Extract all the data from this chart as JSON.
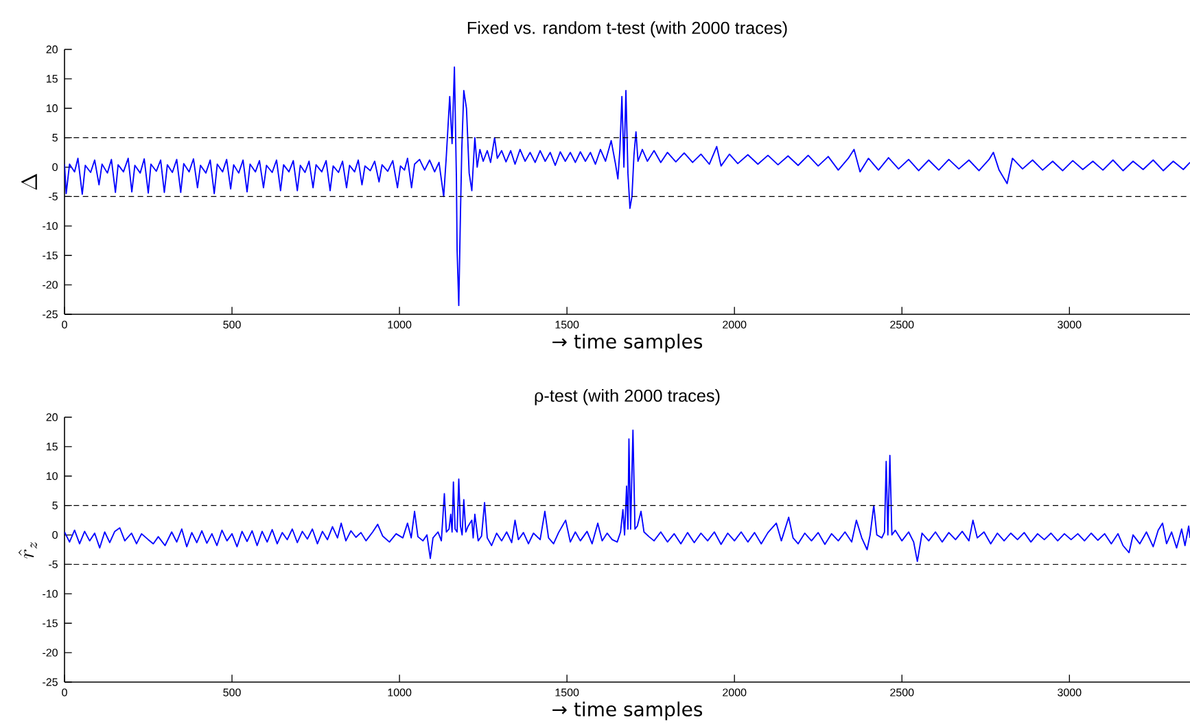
{
  "chart_data": [
    {
      "type": "line",
      "title": "Fixed vs. random t-test (with 2000 traces)",
      "xlabel": "→ time samples",
      "ylabel": "\\Delta",
      "xlim": [
        0,
        3360
      ],
      "ylim": [
        -25,
        20
      ],
      "xticks": [
        0,
        500,
        1000,
        1500,
        2000,
        2500,
        3000
      ],
      "yticks": [
        -25,
        -20,
        -15,
        -10,
        -5,
        0,
        5,
        10,
        15,
        20
      ],
      "ref_lines": [
        {
          "axis": "y",
          "value": 5,
          "color": "#000000",
          "line_style": "dashed"
        },
        {
          "axis": "y",
          "value": -5,
          "color": "#000000",
          "line_style": "dashed"
        }
      ],
      "x": [
        0,
        5,
        15,
        30,
        40,
        53,
        62,
        78,
        90,
        103,
        112,
        128,
        140,
        152,
        160,
        176,
        190,
        201,
        210,
        226,
        238,
        250,
        258,
        274,
        287,
        298,
        307,
        322,
        335,
        347,
        356,
        372,
        385,
        397,
        406,
        422,
        435,
        447,
        456,
        472,
        484,
        496,
        505,
        520,
        533,
        545,
        554,
        570,
        582,
        594,
        603,
        620,
        633,
        645,
        654,
        670,
        683,
        695,
        704,
        718,
        730,
        742,
        751,
        768,
        781,
        793,
        802,
        818,
        830,
        842,
        851,
        866,
        877,
        888,
        897,
        913,
        926,
        939,
        948,
        965,
        980,
        994,
        1003,
        1015,
        1024,
        1036,
        1045,
        1060,
        1075,
        1090,
        1105,
        1118,
        1132,
        1140,
        1150,
        1157,
        1164,
        1170,
        1172,
        1177,
        1182,
        1186,
        1192,
        1200,
        1208,
        1216,
        1225,
        1232,
        1240,
        1250,
        1262,
        1272,
        1284,
        1292,
        1305,
        1318,
        1332,
        1345,
        1360,
        1375,
        1390,
        1405,
        1420,
        1435,
        1450,
        1465,
        1480,
        1495,
        1510,
        1525,
        1540,
        1555,
        1570,
        1585,
        1600,
        1615,
        1632,
        1645,
        1652,
        1658,
        1664,
        1670,
        1676,
        1682,
        1688,
        1694,
        1700,
        1706,
        1712,
        1725,
        1740,
        1760,
        1780,
        1800,
        1825,
        1850,
        1875,
        1900,
        1925,
        1947,
        1960,
        1985,
        2010,
        2040,
        2070,
        2100,
        2130,
        2160,
        2190,
        2220,
        2250,
        2280,
        2310,
        2340,
        2357,
        2375,
        2400,
        2430,
        2460,
        2490,
        2520,
        2550,
        2580,
        2610,
        2640,
        2670,
        2700,
        2730,
        2760,
        2773,
        2790,
        2814,
        2830,
        2860,
        2890,
        2920,
        2950,
        2980,
        3010,
        3040,
        3070,
        3100,
        3130,
        3160,
        3190,
        3220,
        3250,
        3280,
        3310,
        3340,
        3360
      ],
      "series": [
        {
          "color": "#0000ff",
          "values": [
            0.5,
            -4.5,
            0.5,
            -0.8,
            1.5,
            -4.6,
            0.3,
            -0.9,
            1.2,
            -3,
            0.5,
            -1,
            1.3,
            -4.3,
            0.4,
            -0.8,
            1.5,
            -4.2,
            0.3,
            -1,
            1.4,
            -4.4,
            0.5,
            -0.7,
            1.2,
            -4.3,
            0.4,
            -0.9,
            1.3,
            -4.3,
            0.6,
            -0.8,
            1.4,
            -3.5,
            0.3,
            -1,
            1.2,
            -4.5,
            0.5,
            -0.8,
            1.3,
            -3.7,
            0.4,
            -1,
            1.2,
            -4.2,
            0.5,
            -0.8,
            1.1,
            -3.5,
            0.3,
            -0.9,
            1.2,
            -4,
            0.4,
            -0.8,
            1.1,
            -4,
            0.3,
            -0.9,
            1,
            -3.5,
            0.4,
            -0.8,
            1.1,
            -4,
            0.2,
            -0.9,
            1,
            -3.5,
            0.3,
            -0.8,
            1.2,
            -3,
            0.2,
            -0.6,
            1,
            -2.5,
            0.4,
            -0.7,
            1.1,
            -3.5,
            0.2,
            -0.5,
            1.5,
            -3.5,
            0.5,
            1.3,
            -0.5,
            1.2,
            -0.8,
            0.8,
            -5,
            2,
            12,
            4,
            17,
            -2,
            -14,
            -23.5,
            -8,
            3,
            13,
            10,
            -1,
            -4,
            5,
            0,
            3,
            1,
            2.8,
            0.8,
            5,
            1.5,
            2.8,
            0.9,
            2.8,
            0.5,
            3,
            1,
            2.5,
            0.8,
            2.8,
            1,
            2.5,
            0.3,
            2.6,
            1,
            2.5,
            0.8,
            2.6,
            1,
            2.5,
            0.5,
            3,
            1,
            4.5,
            0.5,
            -2,
            3,
            12,
            0,
            13,
            -1,
            -7,
            -5,
            2,
            6,
            1,
            3,
            1,
            2.8,
            0.8,
            2.5,
            0.9,
            2.4,
            0.8,
            2.2,
            0.5,
            3.5,
            0.2,
            2.2,
            0.6,
            2.1,
            0.5,
            2,
            0.4,
            1.9,
            0.3,
            2,
            0.2,
            1.8,
            -0.5,
            1.5,
            3,
            -0.8,
            1.5,
            -0.5,
            1.6,
            -0.3,
            1.3,
            -0.6,
            1.2,
            -0.5,
            1.3,
            -0.3,
            1.2,
            -0.6,
            1.3,
            2.5,
            -0.5,
            -2.8,
            1.5,
            -0.3,
            1.2,
            -0.5,
            1,
            -0.6,
            1.1,
            -0.4,
            1,
            -0.5,
            1.2,
            -0.6,
            1,
            -0.4,
            1.2,
            -0.6,
            1,
            -0.4,
            0.8
          ]
        }
      ]
    },
    {
      "type": "line",
      "title": "ρ-test (with 2000 traces)",
      "xlabel": "→ time samples",
      "ylabel": "\\hat{r}_z",
      "xlim": [
        0,
        3360
      ],
      "ylim": [
        -25,
        20
      ],
      "xticks": [
        0,
        500,
        1000,
        1500,
        2000,
        2500,
        3000
      ],
      "yticks": [
        -25,
        -20,
        -15,
        -10,
        -5,
        0,
        5,
        10,
        15,
        20
      ],
      "ref_lines": [
        {
          "axis": "y",
          "value": 5,
          "color": "#000000",
          "line_style": "dashed"
        },
        {
          "axis": "y",
          "value": -5,
          "color": "#000000",
          "line_style": "dashed"
        }
      ],
      "x": [
        0,
        15,
        30,
        45,
        60,
        75,
        90,
        105,
        120,
        135,
        150,
        165,
        180,
        200,
        215,
        230,
        250,
        265,
        280,
        300,
        320,
        335,
        350,
        365,
        380,
        395,
        410,
        425,
        440,
        455,
        470,
        485,
        500,
        515,
        530,
        545,
        560,
        575,
        590,
        605,
        620,
        635,
        650,
        665,
        680,
        695,
        710,
        725,
        740,
        755,
        770,
        785,
        800,
        815,
        826,
        840,
        855,
        870,
        885,
        900,
        920,
        935,
        950,
        970,
        990,
        1010,
        1024,
        1035,
        1045,
        1055,
        1070,
        1082,
        1092,
        1100,
        1115,
        1125,
        1134,
        1140,
        1148,
        1153,
        1157,
        1161,
        1166,
        1172,
        1177,
        1182,
        1187,
        1192,
        1198,
        1205,
        1216,
        1220,
        1225,
        1235,
        1245,
        1254,
        1262,
        1275,
        1290,
        1305,
        1320,
        1335,
        1345,
        1355,
        1370,
        1385,
        1400,
        1420,
        1434,
        1445,
        1460,
        1475,
        1496,
        1510,
        1525,
        1540,
        1560,
        1575,
        1592,
        1605,
        1620,
        1635,
        1650,
        1660,
        1667,
        1672,
        1678,
        1682,
        1685,
        1690,
        1697,
        1703,
        1710,
        1721,
        1730,
        1745,
        1760,
        1780,
        1800,
        1820,
        1840,
        1860,
        1880,
        1900,
        1920,
        1940,
        1960,
        1980,
        2000,
        2020,
        2040,
        2060,
        2080,
        2100,
        2125,
        2140,
        2162,
        2175,
        2190,
        2210,
        2230,
        2250,
        2270,
        2290,
        2310,
        2330,
        2350,
        2364,
        2380,
        2396,
        2405,
        2416,
        2425,
        2440,
        2448,
        2453,
        2458,
        2464,
        2470,
        2480,
        2500,
        2520,
        2535,
        2546,
        2560,
        2580,
        2600,
        2620,
        2640,
        2660,
        2680,
        2700,
        2712,
        2725,
        2745,
        2765,
        2785,
        2805,
        2825,
        2845,
        2865,
        2885,
        2905,
        2925,
        2945,
        2965,
        2985,
        3005,
        3025,
        3045,
        3065,
        3085,
        3105,
        3125,
        3145,
        3160,
        3178,
        3190,
        3210,
        3230,
        3250,
        3265,
        3278,
        3290,
        3305,
        3320,
        3335,
        3345,
        3356,
        3360
      ],
      "series": [
        {
          "color": "#0000ff",
          "values": [
            0.5,
            -1.2,
            0.8,
            -1.5,
            0.6,
            -1,
            0.3,
            -2.2,
            0.5,
            -1.3,
            0.6,
            1.2,
            -1,
            0.3,
            -1.5,
            0.2,
            -0.8,
            -1.5,
            -0.3,
            -1.8,
            0.5,
            -1.2,
            1,
            -2,
            0.4,
            -1.3,
            0.7,
            -1.4,
            0.2,
            -1.8,
            0.8,
            -1,
            0.2,
            -2,
            0.6,
            -1.1,
            0.7,
            -1.8,
            0.6,
            -1.2,
            0.9,
            -1.5,
            0.4,
            -0.8,
            1,
            -1.3,
            0.6,
            -0.7,
            1,
            -1.5,
            0.6,
            -0.8,
            1.4,
            -0.5,
            2,
            -1,
            0.7,
            -0.4,
            0.4,
            -1,
            0.5,
            1.8,
            -0.2,
            -1.2,
            0.2,
            -0.5,
            2,
            -0.5,
            4,
            -0.3,
            -1,
            0,
            -4,
            -0.5,
            0.5,
            -1,
            7,
            0.5,
            1,
            3.5,
            0.5,
            9,
            1,
            0.5,
            9.5,
            1.5,
            0,
            6,
            0.5,
            1.5,
            2.5,
            -0.5,
            3.5,
            -1,
            -0.2,
            5.5,
            -0.5,
            -1.8,
            0.3,
            -1,
            0.5,
            -1.3,
            2.5,
            -0.8,
            0.4,
            -1.5,
            0.3,
            -0.8,
            4,
            -0.5,
            -1.5,
            0.4,
            2.5,
            -1.2,
            0.5,
            -1,
            0.6,
            -1.5,
            2,
            -1,
            0.3,
            -0.8,
            -1.2,
            0.5,
            4.3,
            0,
            8.3,
            1,
            16.3,
            1,
            17.8,
            1,
            1.5,
            4,
            0.5,
            -0.3,
            -1,
            0.5,
            -1.2,
            0.2,
            -1.5,
            0.4,
            -1.3,
            0.3,
            -1,
            0.5,
            -1.6,
            0.3,
            -1,
            0.5,
            -1.2,
            0.4,
            -1.5,
            0.4,
            2,
            -1,
            3,
            -0.5,
            -1.5,
            0.3,
            -1,
            0.4,
            -1.6,
            0.2,
            -1,
            0.5,
            -1.2,
            2.5,
            -0.5,
            -2.5,
            0,
            5,
            0,
            -0.5,
            0.5,
            12.5,
            0,
            13.5,
            0,
            0.8,
            -1,
            0.5,
            -1.2,
            -4.5,
            0.3,
            -1,
            0.5,
            -1.2,
            0.4,
            -0.8,
            0.6,
            -1,
            2.5,
            -0.5,
            0.5,
            -1.5,
            0.3,
            -1,
            0.3,
            -0.8,
            0.4,
            -1.2,
            0.2,
            -0.8,
            0.3,
            -1,
            0.2,
            -0.8,
            0.2,
            -1,
            0.3,
            -0.9,
            0.2,
            -1.5,
            0.2,
            -1.8,
            -3,
            0,
            -1.5,
            0.5,
            -2,
            0.8,
            2,
            -1.5,
            0.5,
            -2.2,
            1,
            -1.8,
            1.5,
            -0.5
          ]
        }
      ]
    }
  ]
}
